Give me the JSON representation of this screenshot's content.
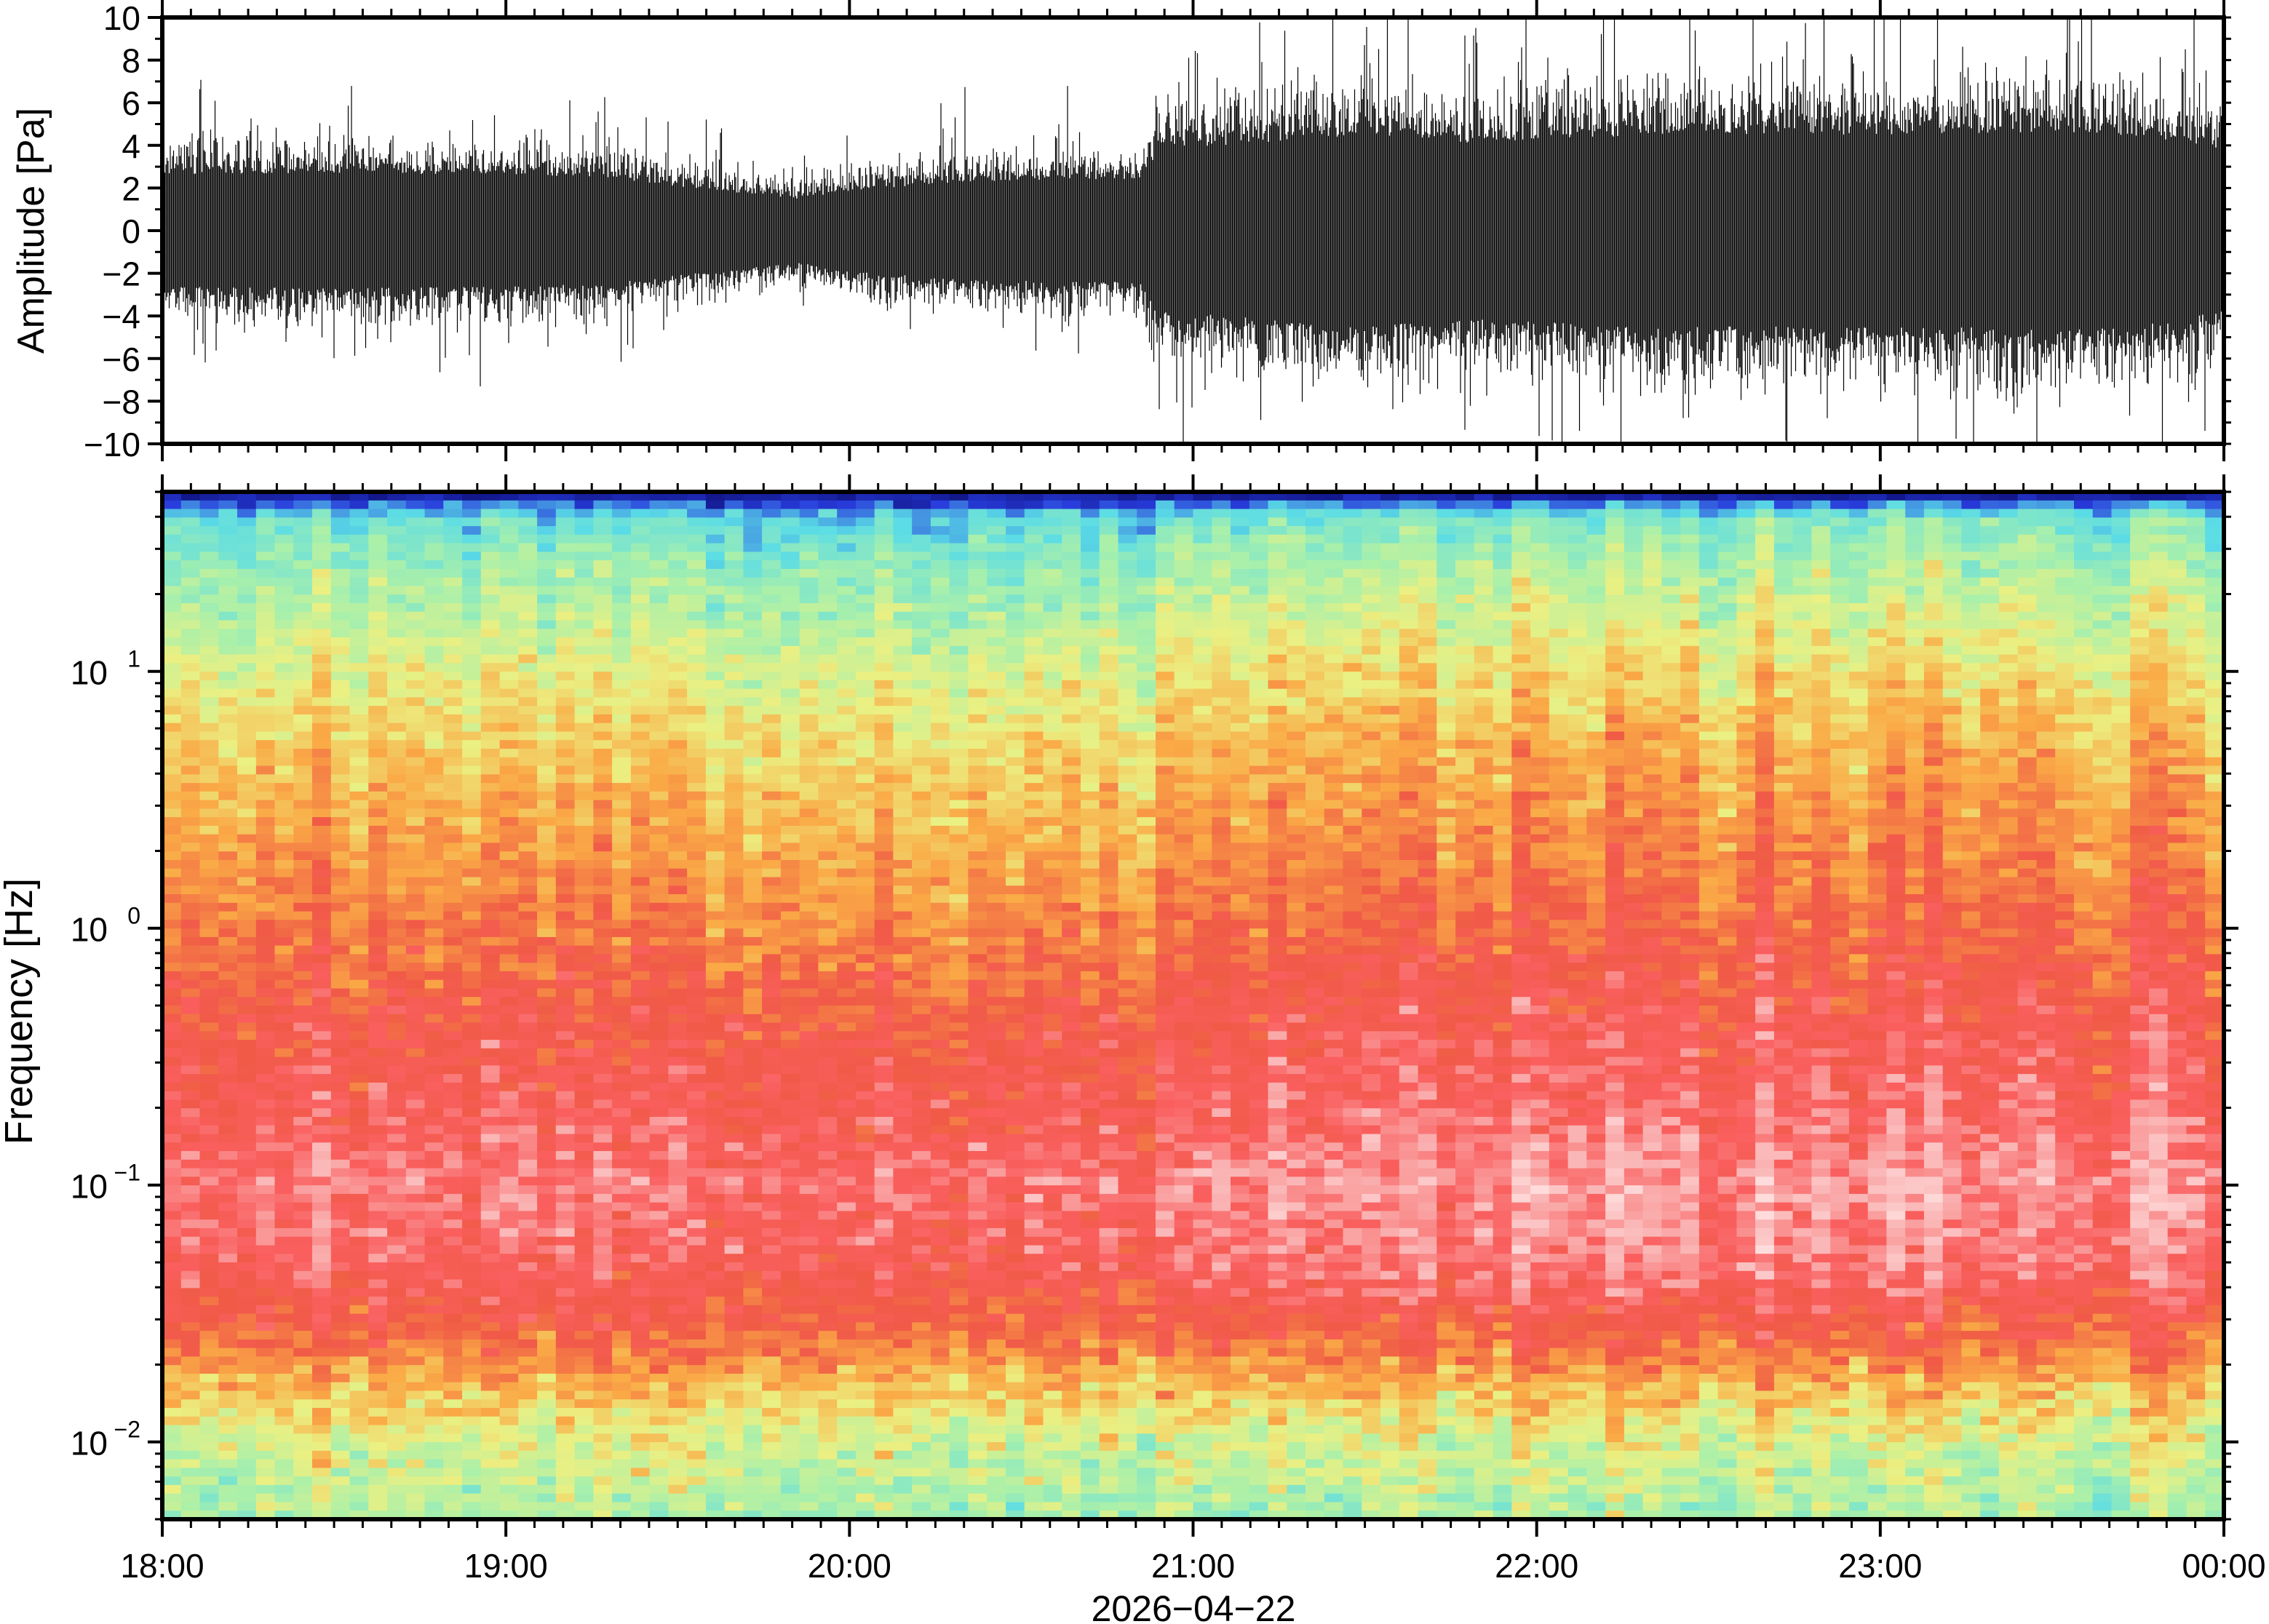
{
  "chart_data": [
    {
      "type": "line",
      "title": "",
      "ylabel": "Amplitude [Pa]",
      "xlabel": "",
      "ylim": [
        -10,
        10
      ],
      "yticks": [
        "10",
        "8",
        "6",
        "4",
        "2",
        "0",
        "−2",
        "−4",
        "−6",
        "−8",
        "−10"
      ],
      "ytick_values": [
        10,
        8,
        6,
        4,
        2,
        0,
        -2,
        -4,
        -6,
        -8,
        -10
      ],
      "envelope_hours": [
        18.0,
        18.5,
        19.0,
        19.3,
        19.6,
        19.85,
        20.0,
        20.3,
        20.6,
        20.85,
        20.9,
        21.2,
        21.5,
        21.8,
        22.1,
        22.4,
        22.8,
        23.2,
        23.5,
        23.8,
        24.0
      ],
      "envelope_pa": [
        3.5,
        3.6,
        3.5,
        3.3,
        2.5,
        2.0,
        2.5,
        3.0,
        3.2,
        3.2,
        5.0,
        5.5,
        6.0,
        5.5,
        5.8,
        6.0,
        6.0,
        6.0,
        6.2,
        5.8,
        5.0
      ]
    },
    {
      "type": "heatmap",
      "ylabel": "Frequency [Hz]",
      "xlabel": "2026−04−22",
      "yscale": "log",
      "ylim": [
        0.005,
        50
      ],
      "yticks": [
        {
          "base": "10",
          "exp": "1",
          "value": 10
        },
        {
          "base": "10",
          "exp": "0",
          "value": 1
        },
        {
          "base": "10",
          "exp": "−1",
          "value": 0.1
        },
        {
          "base": "10",
          "exp": "−2",
          "value": 0.01
        }
      ],
      "xlim_hours": [
        18,
        24
      ],
      "xticks": [
        "18:00",
        "19:00",
        "20:00",
        "21:00",
        "22:00",
        "23:00",
        "00:00"
      ],
      "spectral_profile": {
        "log10_freq": [
          1.69,
          1.6,
          1.45,
          1.2,
          1.0,
          0.6,
          0.2,
          -0.3,
          -0.7,
          -1.0,
          -1.3,
          -1.6,
          -1.8,
          -2.0,
          -2.3
        ],
        "level": [
          0.05,
          0.28,
          0.35,
          0.42,
          0.48,
          0.56,
          0.62,
          0.72,
          0.78,
          0.84,
          0.8,
          0.68,
          0.55,
          0.45,
          0.38
        ]
      }
    }
  ]
}
